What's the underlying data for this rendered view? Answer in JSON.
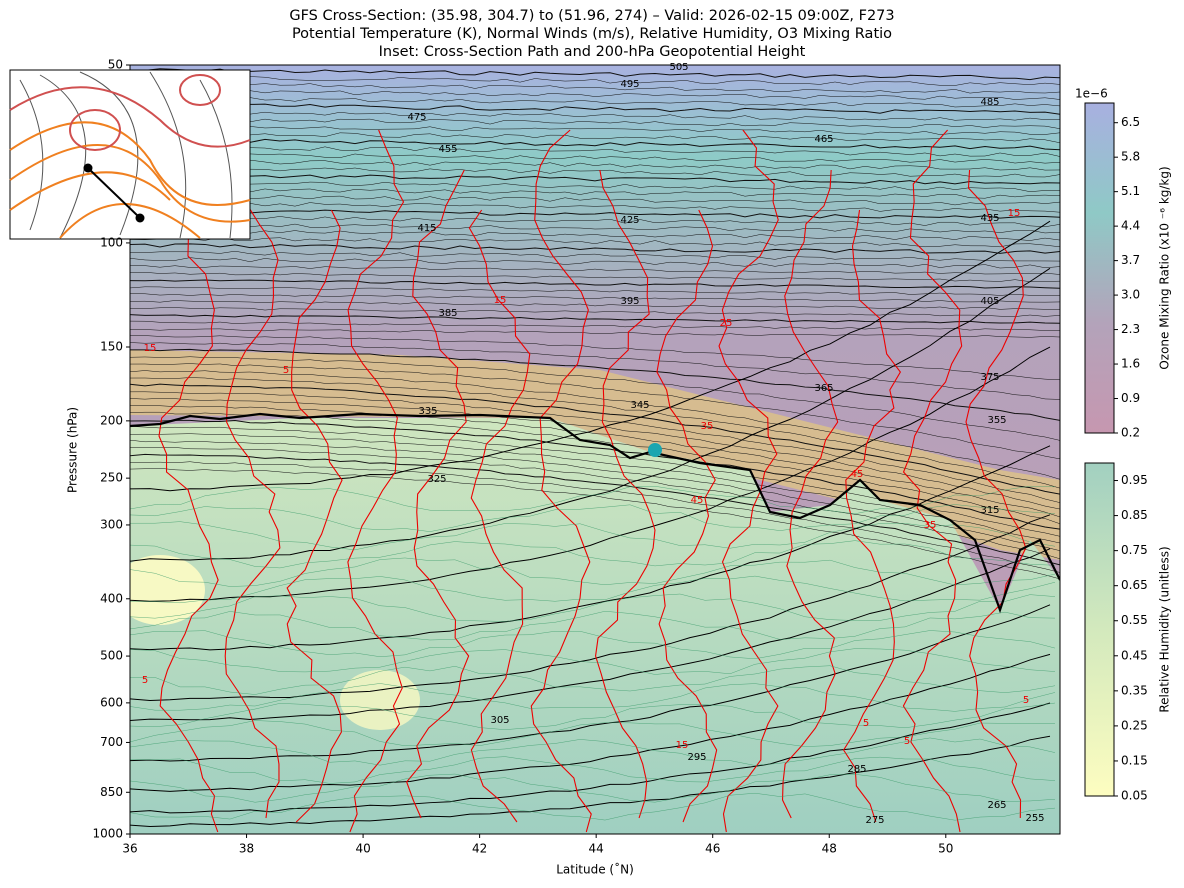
{
  "chart_data": {
    "type": "cross-section",
    "title": [
      "GFS Cross-Section: (35.98, 304.7) to (51.96, 274) – Valid: 2026-02-15 09:00Z, F273",
      "Potential Temperature (K), Normal Winds (m/s), Relative Humidity, O3 Mixing Ratio",
      "Inset: Cross-Section Path and 200-hPa Geopotential Height"
    ],
    "xlabel": "Latitude (˚N)",
    "ylabel": "Pressure (hPa)",
    "xlim": [
      36,
      51.96
    ],
    "xticks": [
      36,
      38,
      40,
      42,
      44,
      46,
      48,
      50
    ],
    "ylim": [
      1000,
      50
    ],
    "ylog": true,
    "yticks": [
      50,
      100,
      150,
      200,
      250,
      300,
      400,
      500,
      600,
      700,
      850,
      1000
    ],
    "theta_labels": [
      505,
      495,
      485,
      475,
      465,
      455,
      435,
      425,
      415,
      405,
      395,
      385,
      375,
      365,
      355,
      345,
      335,
      325,
      315,
      305,
      295,
      285,
      275,
      265,
      255
    ],
    "wind_labels": [
      15,
      25,
      5,
      15,
      35,
      45,
      45,
      35,
      5,
      5,
      5,
      15,
      5,
      15
    ],
    "colorbars": [
      {
        "label": "Ozone Mixing Ratio (x10 ⁻⁶ kg/kg)",
        "offset_label": "1e−6",
        "lim": [
          0.2,
          6.9
        ],
        "ticks": [
          0.2,
          0.9,
          1.6,
          2.3,
          {
            "value": 3,
            "label": "3.0"
          },
          3.7,
          4.4,
          5.1,
          5.8,
          6.5
        ],
        "colors": [
          "#c697b0",
          "#b3a3ba",
          "#8fc9c6",
          "#a8b0e0"
        ]
      },
      {
        "label": "Relative Humidity (unitless)",
        "lim": [
          0.05,
          1.0
        ],
        "ticks": [
          0.05,
          0.15,
          0.25,
          0.35,
          0.45,
          0.55,
          0.65,
          0.75,
          0.85,
          0.95
        ],
        "colors": [
          "#fdfdc0",
          "#d3e9bd",
          "#a2d0c0"
        ]
      }
    ]
  }
}
